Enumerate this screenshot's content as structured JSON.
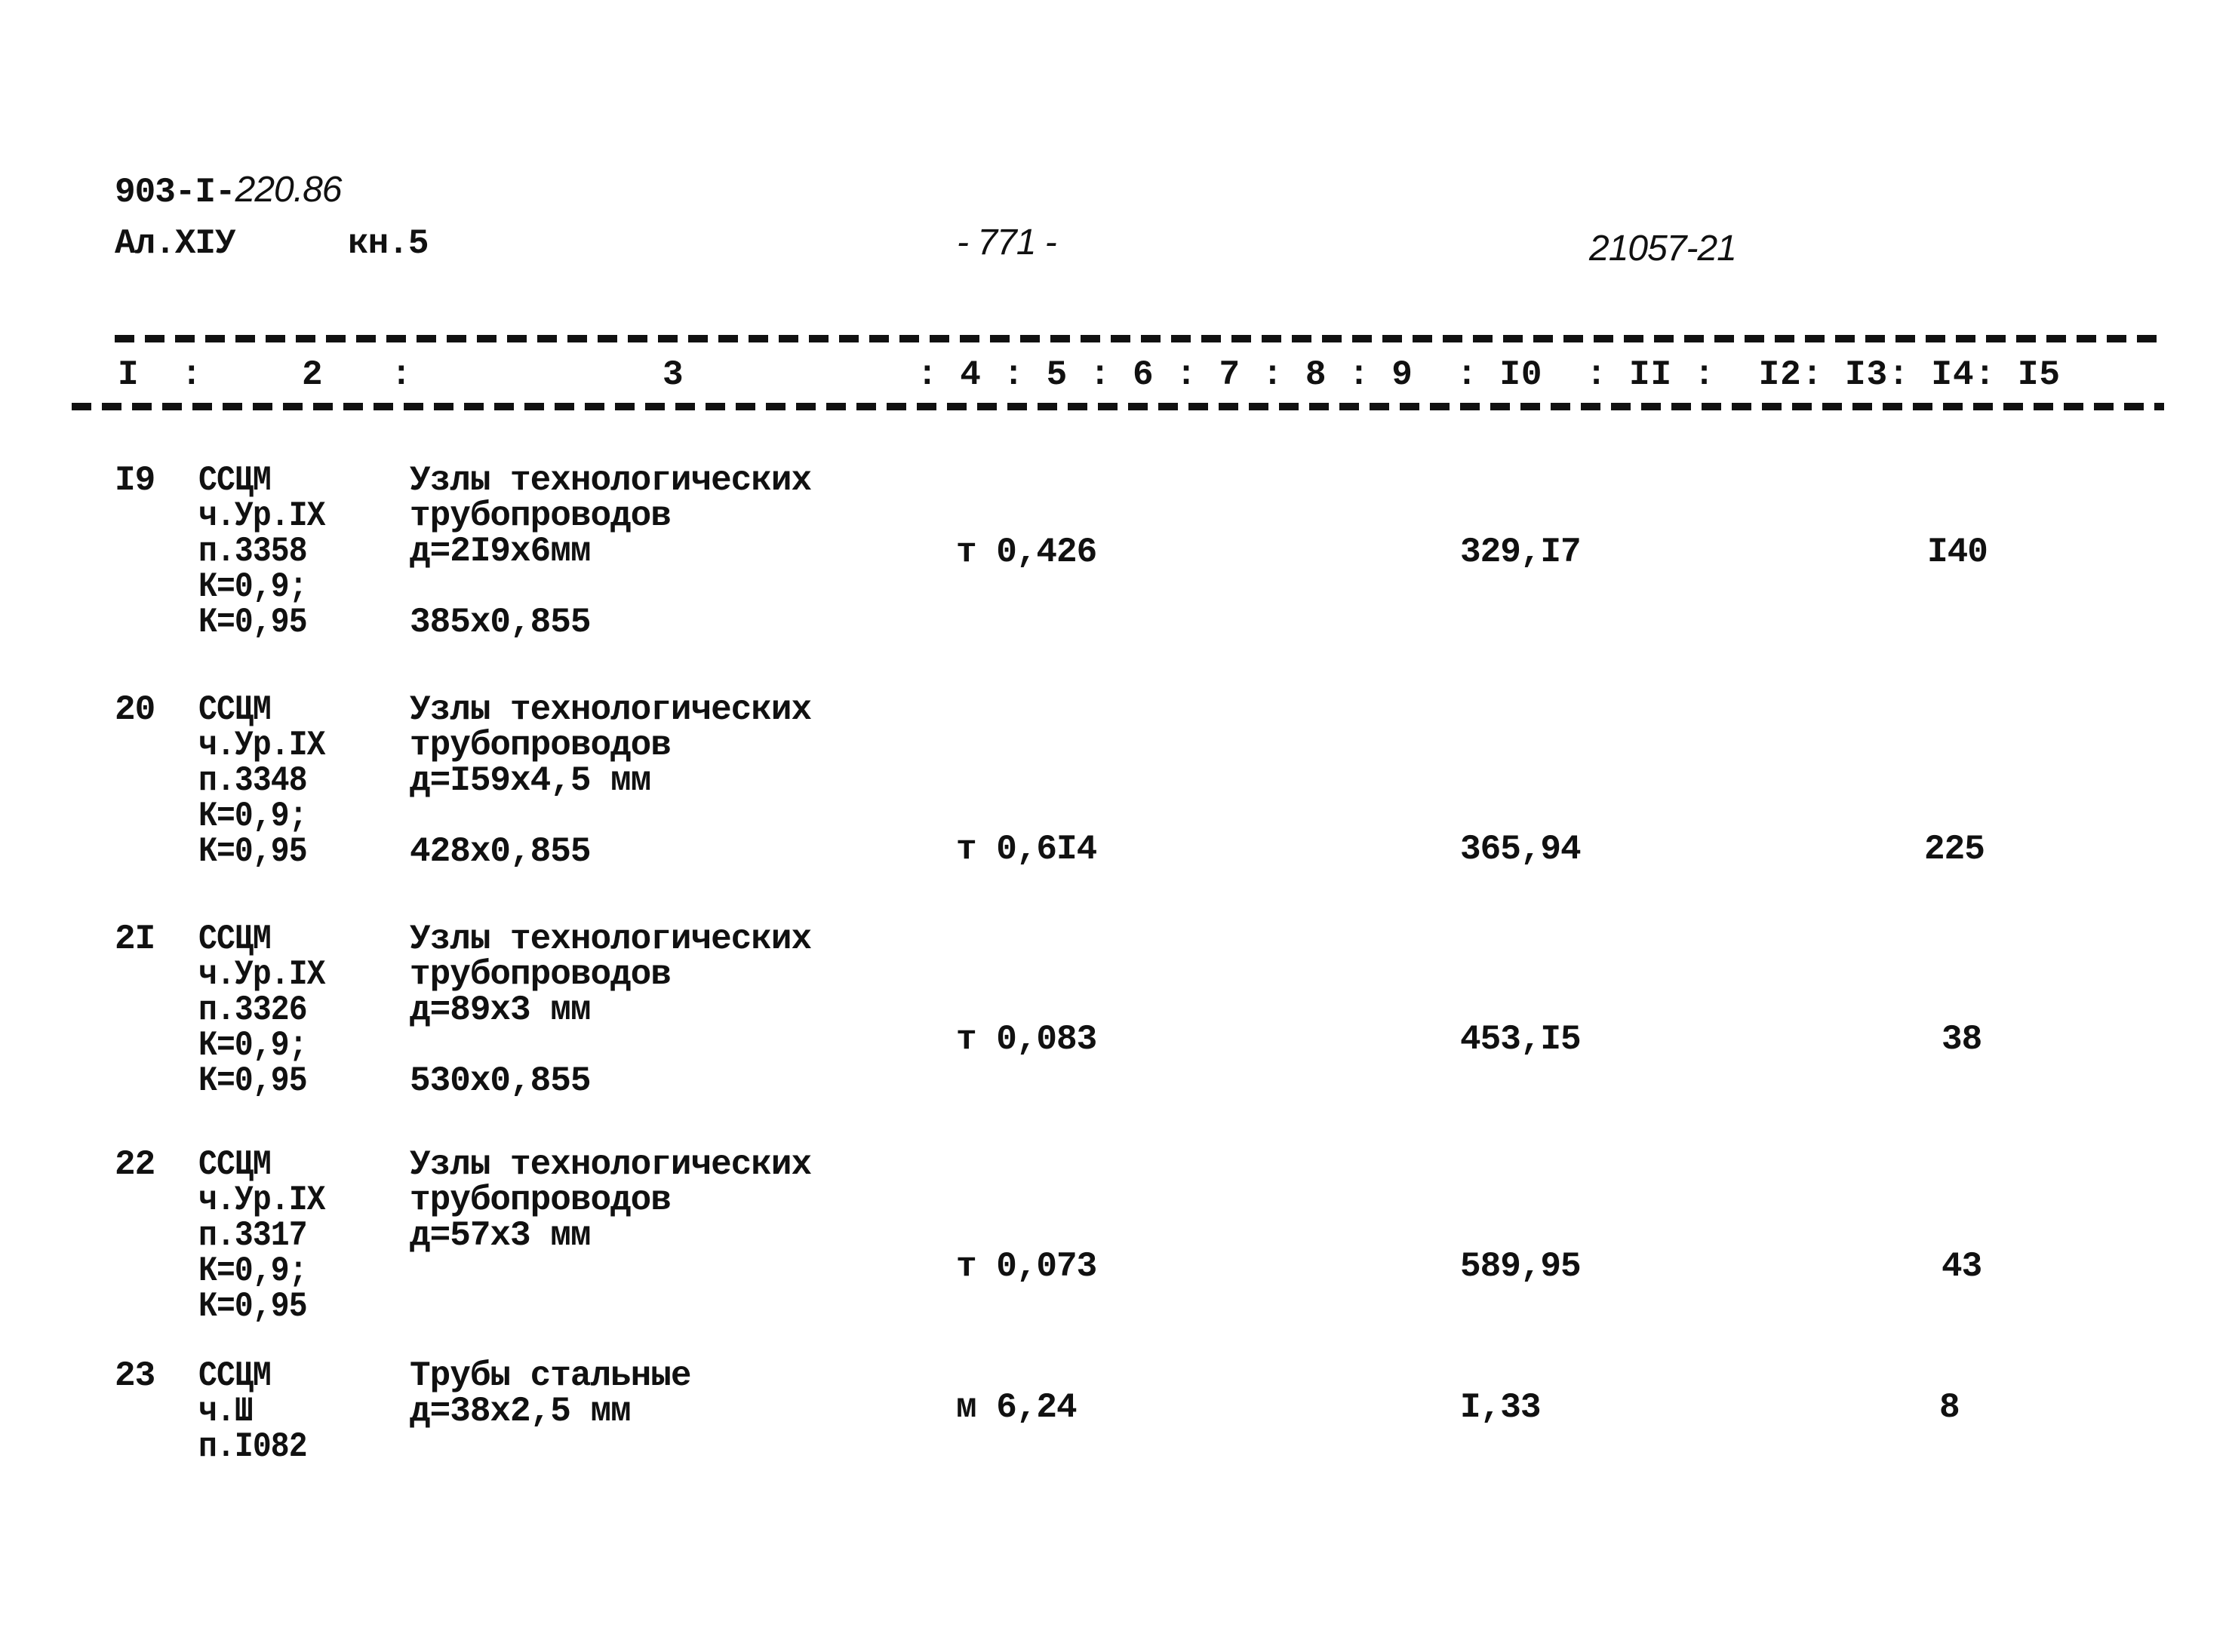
{
  "header": {
    "doc_code_printed": "903-I-",
    "doc_code_handwritten": "220.86",
    "album": "Ал.XIУ",
    "book": "кн.5",
    "page_number": "- 771 -",
    "project_number": "21057-21"
  },
  "table_header": {
    "col1": "I",
    "sep1": ":",
    "col2": "2",
    "sep2": ":",
    "col3": "3",
    "rest": ": 4 : 5 : 6 : 7 : 8 : 9  : I0  : II :  I2: I3: I4: I5"
  },
  "rows": [
    {
      "num": "I9",
      "ref": [
        "ССЦМ",
        "ч.Ур.IX",
        "п.3358",
        "К=0,9;",
        "К=0,95"
      ],
      "desc": [
        "Узлы технологических",
        "трубопроводов",
        "д=2I9х6мм",
        "",
        "385х0,855"
      ],
      "unit_qty": "т 0,426",
      "price": "329,I7",
      "total": "I40"
    },
    {
      "num": "20",
      "ref": [
        "ССЦМ",
        "ч.Ур.IX",
        "п.3348",
        "К=0,9;",
        "К=0,95"
      ],
      "desc": [
        "Узлы технологических",
        "трубопроводов",
        "д=I59х4,5 мм",
        "",
        "428х0,855"
      ],
      "unit_qty": "т 0,6I4",
      "price": "365,94",
      "total": "225"
    },
    {
      "num": "2I",
      "ref": [
        "ССЦМ",
        "ч.Ур.IX",
        "п.3326",
        "К=0,9;",
        "К=0,95"
      ],
      "desc": [
        "Узлы технологических",
        "трубопроводов",
        "д=89х3 мм",
        "",
        "530х0,855"
      ],
      "unit_qty": "т 0,083",
      "price": "453,I5",
      "total": "38"
    },
    {
      "num": "22",
      "ref": [
        "ССЦМ",
        "ч.Ур.IX",
        "п.3317",
        "К=0,9;",
        "К=0,95"
      ],
      "desc": [
        "Узлы технологических",
        "трубопроводов",
        "д=57х3 мм",
        "",
        ""
      ],
      "unit_qty": "т 0,073",
      "price": "589,95",
      "total": "43"
    },
    {
      "num": "23",
      "ref": [
        "ССЦМ",
        "ч.Ш",
        "п.I082"
      ],
      "desc": [
        "Трубы стальные",
        "д=38х2,5 мм"
      ],
      "unit_qty": "м 6,24",
      "price": "I,33",
      "total": "8"
    }
  ]
}
